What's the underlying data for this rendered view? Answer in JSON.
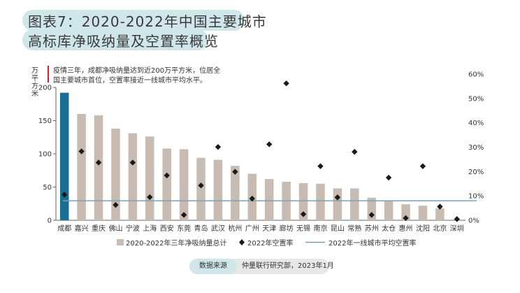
{
  "header": {
    "title_line1": "图表7：2020-2022年中国主要城市",
    "title_line2": "高标库净吸纳量及空置率概览"
  },
  "note": {
    "line1": "疫情三年，成都净吸纳量达到近200万平方米，位居全",
    "line2": "国主要城市首位，空置率接近一线城市平均水平。"
  },
  "source": {
    "label": "数据来源",
    "text": "仲量联行研究部，2023年1月"
  },
  "colors": {
    "bar": "#c8bbb1",
    "bar_highlight": "#1a6e96",
    "marker": "#1a1a1a",
    "avg_line": "#7fa1b3",
    "title_pill": "#cfe6ea"
  },
  "chart_data": {
    "type": "bar",
    "categories": [
      "成都",
      "嘉兴",
      "重庆",
      "佛山",
      "宁波",
      "上海",
      "西安",
      "东莞",
      "青岛",
      "武汉",
      "杭州",
      "广州",
      "天津",
      "廊坊",
      "无锡",
      "南京",
      "昆山",
      "常熟",
      "苏州",
      "太仓",
      "惠州",
      "沈阳",
      "北京",
      "深圳"
    ],
    "ylabel": "万平方米",
    "ylim": [
      0,
      200
    ],
    "yticks": [
      0,
      50,
      100,
      150,
      200
    ],
    "y2lim": [
      0,
      60
    ],
    "y2ticks": [
      "0%",
      "10%",
      "20%",
      "30%",
      "40%",
      "50%",
      "60%"
    ],
    "highlight_category": "成都",
    "series": [
      {
        "name": "2020-2022年三年净吸纳量总计",
        "kind": "bar",
        "axis": "left",
        "values": [
          192,
          160,
          158,
          138,
          131,
          126,
          108,
          107,
          94,
          91,
          82,
          70,
          62,
          58,
          56,
          55,
          48,
          48,
          34,
          30,
          24,
          22,
          18,
          0
        ]
      },
      {
        "name": "2022年空置率",
        "kind": "marker",
        "axis": "right",
        "values": [
          10.5,
          28.3,
          23.7,
          6.3,
          23.7,
          9.5,
          18.4,
          2.2,
          14.3,
          30.1,
          19.9,
          8.9,
          31.2,
          56.2,
          2.5,
          22.2,
          9.4,
          28.1,
          2.2,
          17.5,
          0.9,
          22.2,
          5.6,
          0.5
        ]
      },
      {
        "name": "2022年一线城市平均空置率",
        "kind": "line",
        "axis": "right",
        "value": 8.0
      }
    ]
  }
}
